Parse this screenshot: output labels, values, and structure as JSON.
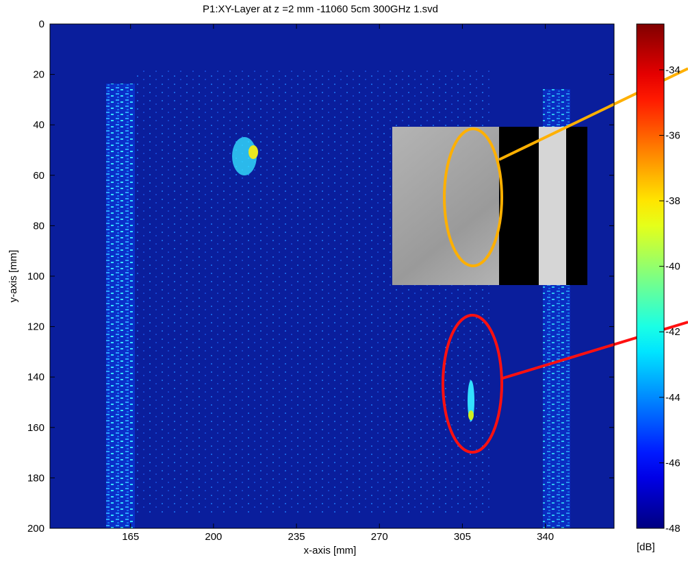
{
  "chart_data": {
    "type": "heatmap",
    "title": "P1:XY-Layer at z =2  mm  -11060 5cm 300GHz 1.svd",
    "xlabel": "x-axis   [mm]",
    "ylabel": "y-axis   [mm]",
    "xlim": [
      131,
      369
    ],
    "xticks": [
      165,
      200,
      235,
      270,
      305,
      340
    ],
    "ylim": [
      0,
      200
    ],
    "y_reversed": true,
    "yticks": [
      0,
      20,
      40,
      60,
      80,
      100,
      120,
      140,
      160,
      180,
      200
    ],
    "colorbar": {
      "clim": [
        -48,
        -32.6
      ],
      "ticks": [
        -34,
        -36,
        -38,
        -40,
        -42,
        -44,
        -46,
        -48
      ],
      "label": "[dB]",
      "colormap": "jet"
    }
  }
}
